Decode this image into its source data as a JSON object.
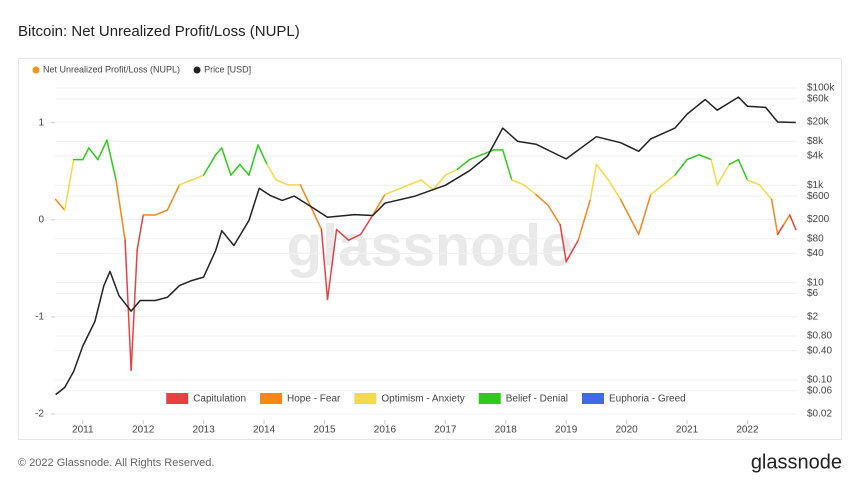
{
  "chart_data": {
    "type": "line",
    "title": "Bitcoin: Net Unrealized Profit/Loss (NUPL)",
    "watermark": "glassnode",
    "footer": "© 2022 Glassnode. All Rights Reserved.",
    "logo": "glassnode",
    "xlim": [
      2010.54,
      2022.82
    ],
    "xticks": [
      2011,
      2012,
      2013,
      2014,
      2015,
      2016,
      2017,
      2018,
      2019,
      2020,
      2021,
      2022
    ],
    "ylim": [
      -2,
      1.44
    ],
    "yticks": [
      1,
      0,
      -1,
      -2
    ],
    "y2lim": [
      0.02,
      146000
    ],
    "y2log": true,
    "y2ticks": [
      {
        "value": 100000,
        "label": "$100k"
      },
      {
        "value": 60000,
        "label": "$60k"
      },
      {
        "value": 20000,
        "label": "$20k"
      },
      {
        "value": 8000,
        "label": "$8k"
      },
      {
        "value": 4000,
        "label": "$4k"
      },
      {
        "value": 1000,
        "label": "$1k"
      },
      {
        "value": 600,
        "label": "$600"
      },
      {
        "value": 200,
        "label": "$200"
      },
      {
        "value": 80,
        "label": "$80"
      },
      {
        "value": 40,
        "label": "$40"
      },
      {
        "value": 10,
        "label": "$10"
      },
      {
        "value": 6,
        "label": "$6"
      },
      {
        "value": 2,
        "label": "$2"
      },
      {
        "value": 0.8,
        "label": "$0.80"
      },
      {
        "value": 0.4,
        "label": "$0.40"
      },
      {
        "value": 0.1,
        "label": "$0.10"
      },
      {
        "value": 0.06,
        "label": "$0.06"
      },
      {
        "value": 0.02,
        "label": "$0.02"
      }
    ],
    "grid": true,
    "zones": [
      {
        "name": "Capitulation",
        "color": "#e84142",
        "to": 0
      },
      {
        "name": "Hope - Fear",
        "color": "#f7861b",
        "to": 0.25
      },
      {
        "name": "Optimism - Anxiety",
        "color": "#f5d94a",
        "to": 0.5
      },
      {
        "name": "Belief - Denial",
        "color": "#2ecc1a",
        "to": 0.75
      },
      {
        "name": "Euphoria - Greed",
        "color": "#4169e1",
        "to": null
      }
    ],
    "series": [
      {
        "name": "Net Unrealized Profit/Loss (NUPL)",
        "color": "#f7931a",
        "axis": "y",
        "zoned": true,
        "x": [
          2010.55,
          2010.7,
          2010.85,
          2011.0,
          2011.1,
          2011.25,
          2011.4,
          2011.55,
          2011.7,
          2011.8,
          2011.9,
          2012.0,
          2012.2,
          2012.4,
          2012.6,
          2012.8,
          2013.0,
          2013.2,
          2013.3,
          2013.45,
          2013.6,
          2013.75,
          2013.9,
          2014.05,
          2014.2,
          2014.4,
          2014.6,
          2014.8,
          2014.95,
          2015.05,
          2015.2,
          2015.4,
          2015.6,
          2015.8,
          2016.0,
          2016.2,
          2016.4,
          2016.6,
          2016.8,
          2017.0,
          2017.2,
          2017.4,
          2017.6,
          2017.8,
          2017.95,
          2018.1,
          2018.3,
          2018.5,
          2018.7,
          2018.9,
          2019.0,
          2019.2,
          2019.4,
          2019.5,
          2019.7,
          2019.9,
          2020.2,
          2020.4,
          2020.6,
          2020.8,
          2021.0,
          2021.2,
          2021.4,
          2021.5,
          2021.7,
          2021.85,
          2022.0,
          2022.2,
          2022.4,
          2022.5,
          2022.6,
          2022.7,
          2022.8
        ],
        "values": [
          0.21,
          0.1,
          0.62,
          0.62,
          0.74,
          0.62,
          0.82,
          0.41,
          -0.21,
          -1.55,
          -0.31,
          0.05,
          0.05,
          0.1,
          0.36,
          0.41,
          0.46,
          0.67,
          0.74,
          0.46,
          0.57,
          0.46,
          0.77,
          0.57,
          0.41,
          0.36,
          0.36,
          0.1,
          -0.1,
          -0.82,
          -0.1,
          -0.21,
          -0.15,
          0.05,
          0.26,
          0.31,
          0.36,
          0.41,
          0.31,
          0.46,
          0.52,
          0.62,
          0.67,
          0.72,
          0.72,
          0.41,
          0.36,
          0.26,
          0.15,
          -0.05,
          -0.43,
          -0.21,
          0.21,
          0.57,
          0.41,
          0.21,
          -0.15,
          0.26,
          0.36,
          0.46,
          0.62,
          0.67,
          0.62,
          0.36,
          0.57,
          0.62,
          0.41,
          0.36,
          0.21,
          -0.15,
          -0.05,
          0.05,
          -0.1
        ]
      },
      {
        "name": "Price [USD]",
        "color": "#222222",
        "axis": "y2",
        "x": [
          2010.55,
          2010.7,
          2010.85,
          2011.0,
          2011.2,
          2011.35,
          2011.45,
          2011.6,
          2011.8,
          2011.95,
          2012.2,
          2012.4,
          2012.6,
          2012.8,
          2013.0,
          2013.2,
          2013.3,
          2013.5,
          2013.75,
          2013.92,
          2014.1,
          2014.3,
          2014.5,
          2014.8,
          2015.05,
          2015.5,
          2015.8,
          2016.0,
          2016.5,
          2017.0,
          2017.4,
          2017.7,
          2017.95,
          2018.2,
          2018.5,
          2018.9,
          2019.0,
          2019.5,
          2019.9,
          2020.2,
          2020.4,
          2020.8,
          2021.0,
          2021.3,
          2021.5,
          2021.85,
          2022.0,
          2022.3,
          2022.5,
          2022.8
        ],
        "values": [
          0.05,
          0.07,
          0.15,
          0.5,
          1.6,
          8.7,
          17,
          5.4,
          2.6,
          4.3,
          4.3,
          5,
          8.7,
          11,
          13,
          46,
          117,
          58,
          190,
          870,
          620,
          490,
          600,
          350,
          220,
          250,
          240,
          430,
          600,
          1000,
          2000,
          4000,
          15000,
          8000,
          7000,
          4000,
          3500,
          10000,
          7500,
          5000,
          9000,
          15000,
          29000,
          58000,
          35000,
          65000,
          42000,
          40000,
          20000,
          19500
        ]
      }
    ]
  }
}
